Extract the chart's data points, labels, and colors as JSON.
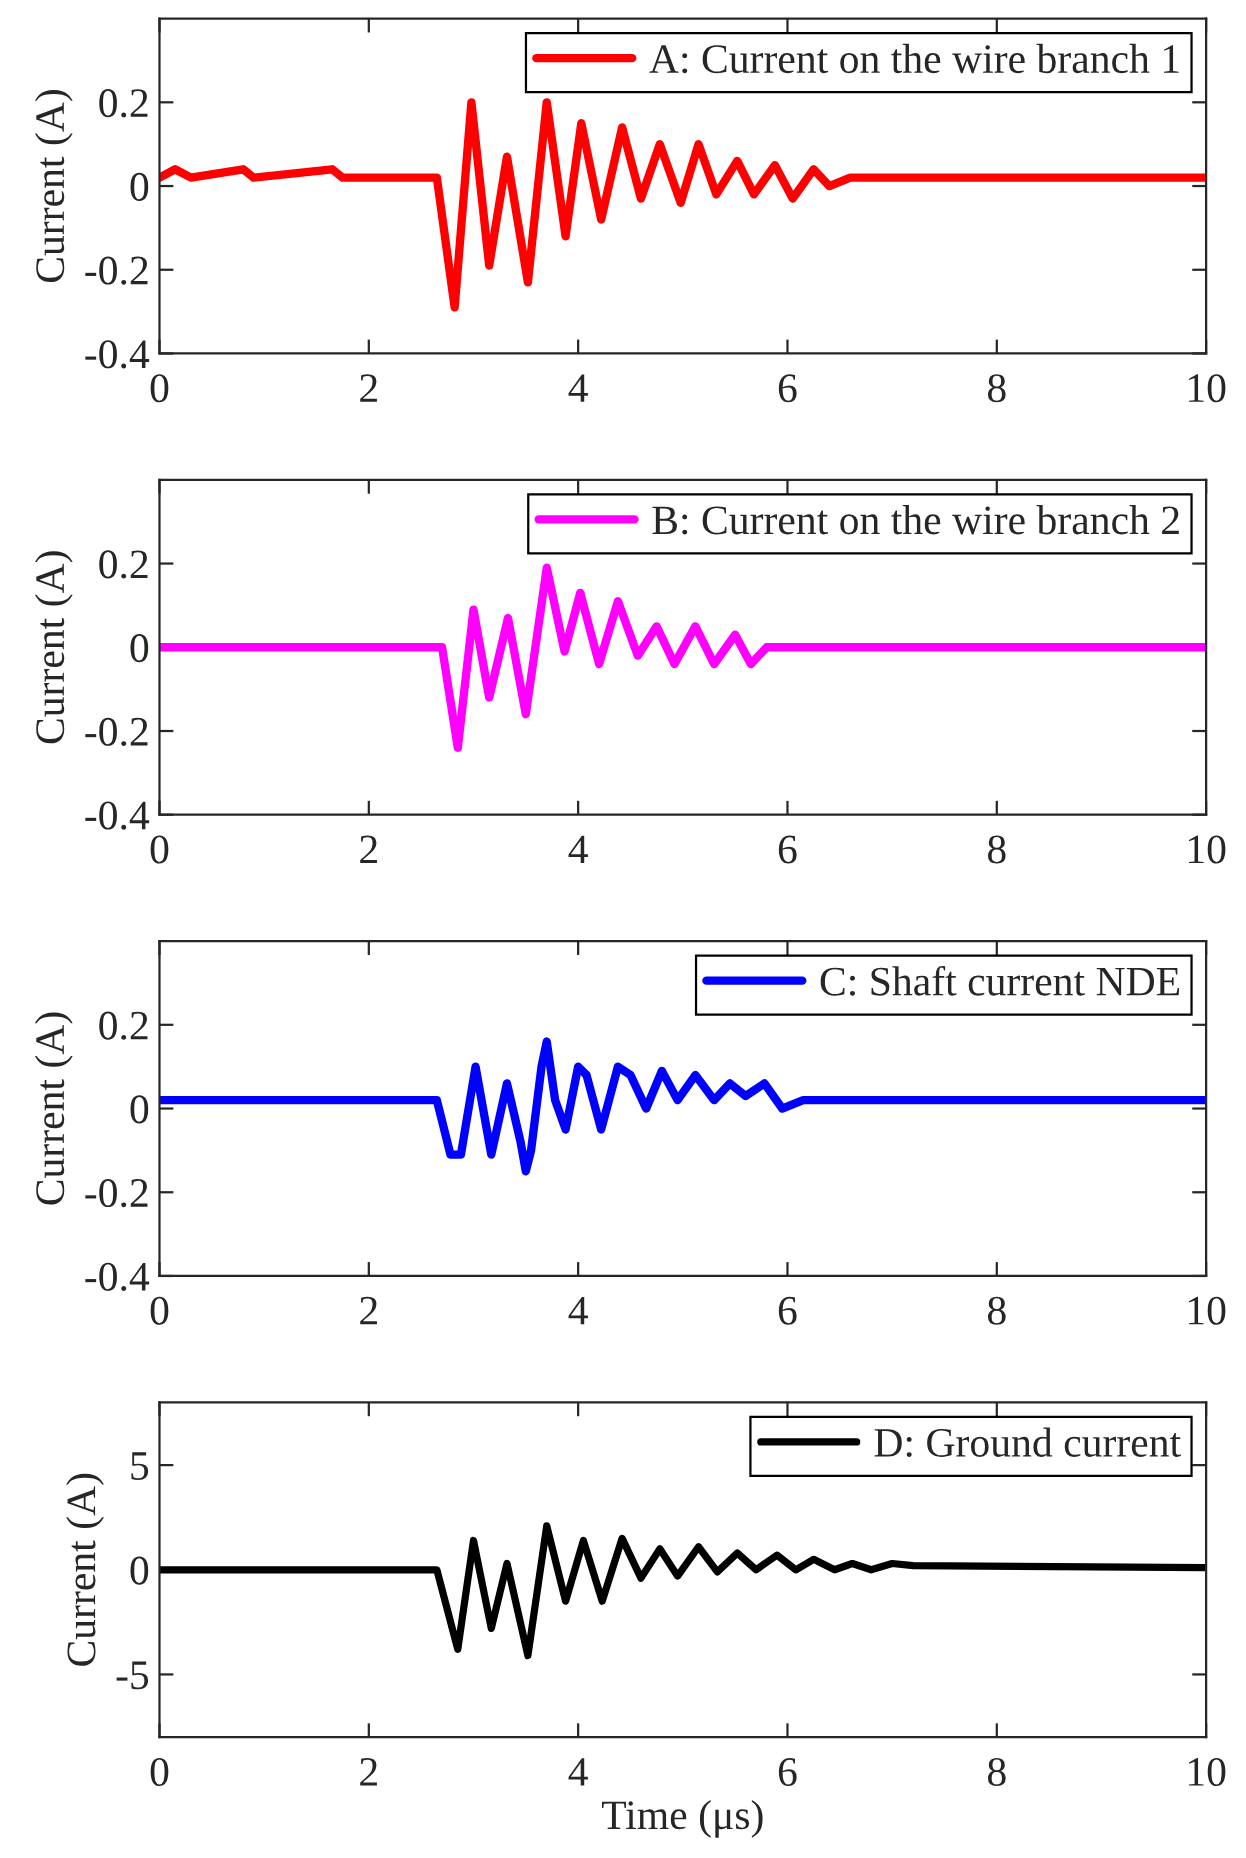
{
  "chart_data": [
    {
      "type": "line",
      "ylabel": "Current (A)",
      "xlim": [
        0,
        10
      ],
      "xticks": [
        0,
        2,
        4,
        6,
        8,
        10
      ],
      "ylim": [
        -0.4,
        0.4
      ],
      "yticks": [
        -0.4,
        -0.2,
        0,
        0.2
      ],
      "grid": false,
      "legend": "top right",
      "line_style": "solid",
      "series": [
        {
          "name": "A: Current on the wire branch 1",
          "color": "#ff0000",
          "x": [
            0,
            0.15,
            0.3,
            0.8,
            0.9,
            1.65,
            1.75,
            2.65,
            2.82,
            2.98,
            3.15,
            3.32,
            3.52,
            3.7,
            3.88,
            4.03,
            4.22,
            4.42,
            4.6,
            4.78,
            4.98,
            5.15,
            5.32,
            5.52,
            5.68,
            5.88,
            6.05,
            6.25,
            6.4,
            6.6,
            10
          ],
          "values": [
            0.02,
            0.04,
            0.02,
            0.04,
            0.02,
            0.04,
            0.02,
            0.02,
            -0.29,
            0.2,
            -0.19,
            0.07,
            -0.23,
            0.2,
            -0.12,
            0.15,
            -0.08,
            0.14,
            -0.03,
            0.1,
            -0.04,
            0.1,
            -0.02,
            0.06,
            -0.02,
            0.05,
            -0.03,
            0.04,
            0.0,
            0.02,
            0.02
          ]
        }
      ]
    },
    {
      "type": "line",
      "ylabel": "Current (A)",
      "xlim": [
        0,
        10
      ],
      "xticks": [
        0,
        2,
        4,
        6,
        8,
        10
      ],
      "ylim": [
        -0.4,
        0.4
      ],
      "yticks": [
        -0.4,
        -0.2,
        0,
        0.2
      ],
      "grid": false,
      "legend": "top right",
      "line_style": "solid",
      "series": [
        {
          "name": "B: Current on the wire branch 2",
          "color": "#ff00ff",
          "x": [
            0,
            2.7,
            2.85,
            3.0,
            3.15,
            3.33,
            3.5,
            3.7,
            3.87,
            4.02,
            4.2,
            4.38,
            4.57,
            4.75,
            4.92,
            5.12,
            5.3,
            5.5,
            5.65,
            5.8,
            10
          ],
          "values": [
            0.0,
            0.0,
            -0.24,
            0.09,
            -0.12,
            0.07,
            -0.16,
            0.19,
            -0.01,
            0.13,
            -0.04,
            0.11,
            -0.02,
            0.05,
            -0.04,
            0.05,
            -0.04,
            0.03,
            -0.04,
            0.0,
            0.0
          ]
        }
      ]
    },
    {
      "type": "line",
      "ylabel": "Current (A)",
      "xlim": [
        0,
        10
      ],
      "xticks": [
        0,
        2,
        4,
        6,
        8,
        10
      ],
      "ylim": [
        -0.4,
        0.4
      ],
      "yticks": [
        -0.4,
        -0.2,
        0,
        0.2
      ],
      "grid": false,
      "legend": "top right",
      "line_style": "solid",
      "series": [
        {
          "name": "C: Shaft current NDE",
          "color": "#0000ff",
          "x": [
            0,
            2.65,
            2.78,
            2.88,
            3.02,
            3.17,
            3.32,
            3.45,
            3.5,
            3.55,
            3.65,
            3.7,
            3.78,
            3.88,
            4.0,
            4.08,
            4.22,
            4.38,
            4.5,
            4.65,
            4.8,
            4.95,
            5.12,
            5.3,
            5.45,
            5.6,
            5.78,
            5.95,
            6.15,
            10
          ],
          "values": [
            0.02,
            0.02,
            -0.11,
            -0.11,
            0.1,
            -0.11,
            0.06,
            -0.08,
            -0.15,
            -0.1,
            0.1,
            0.16,
            0.02,
            -0.05,
            0.1,
            0.08,
            -0.05,
            0.1,
            0.08,
            0.0,
            0.09,
            0.02,
            0.08,
            0.02,
            0.06,
            0.03,
            0.06,
            0.0,
            0.02,
            0.02
          ]
        }
      ]
    },
    {
      "type": "line",
      "ylabel": "Current (A)",
      "xlabel": "Time (μs)",
      "xlim": [
        0,
        10
      ],
      "xticks": [
        0,
        2,
        4,
        6,
        8,
        10
      ],
      "ylim": [
        -8,
        8
      ],
      "yticks": [
        -5,
        0,
        5
      ],
      "grid": false,
      "legend": "top right",
      "line_style": "solid",
      "series": [
        {
          "name": "D: Ground current",
          "color": "#000000",
          "x": [
            0,
            2.65,
            2.85,
            3.0,
            3.17,
            3.32,
            3.52,
            3.7,
            3.88,
            4.05,
            4.23,
            4.42,
            4.6,
            4.78,
            4.95,
            5.15,
            5.33,
            5.52,
            5.7,
            5.9,
            6.08,
            6.25,
            6.45,
            6.62,
            6.8,
            7.0,
            7.2,
            10
          ],
          "values": [
            0,
            0,
            -3.8,
            1.4,
            -2.8,
            0.3,
            -4.1,
            2.1,
            -1.5,
            1.4,
            -1.5,
            1.5,
            -0.4,
            1.0,
            -0.3,
            1.1,
            -0.1,
            0.8,
            0.0,
            0.7,
            0.0,
            0.5,
            0.0,
            0.3,
            0.0,
            0.3,
            0.2,
            0.1
          ]
        }
      ]
    }
  ]
}
